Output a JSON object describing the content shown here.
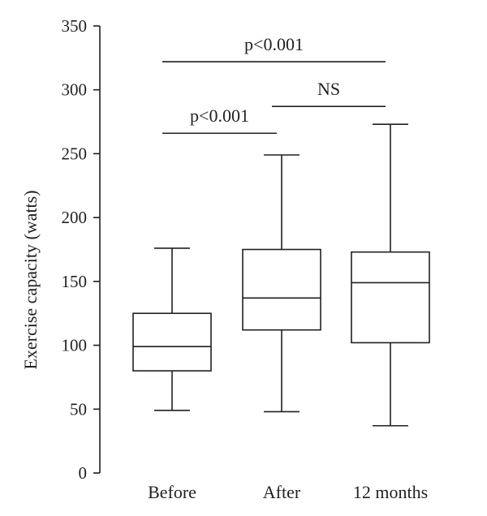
{
  "chart_data": {
    "type": "box",
    "title": "",
    "xlabel": "",
    "ylabel": "Exercise capacity (watts)",
    "ylim": [
      0,
      350
    ],
    "yticks": [
      0,
      50,
      100,
      150,
      200,
      250,
      300,
      350
    ],
    "grid": false,
    "categories": [
      "Before",
      "After",
      "12 months"
    ],
    "boxes": [
      {
        "category": "Before",
        "min": 49,
        "q1": 80,
        "median": 99,
        "q3": 125,
        "max": 176
      },
      {
        "category": "After",
        "min": 48,
        "q1": 112,
        "median": 137,
        "q3": 175,
        "max": 249
      },
      {
        "category": "12 months",
        "min": 37,
        "q1": 102,
        "median": 149,
        "q3": 173,
        "max": 273
      }
    ],
    "annotations": [
      {
        "text": "p<0.001",
        "from": "Before",
        "to": "After",
        "y": 266
      },
      {
        "text": "NS",
        "from": "After",
        "to": "12 months",
        "y": 287
      },
      {
        "text": "p<0.001",
        "from": "Before",
        "to": "12 months",
        "y": 322
      }
    ]
  },
  "colors": {
    "ink": "#231f20",
    "background": "#ffffff"
  }
}
